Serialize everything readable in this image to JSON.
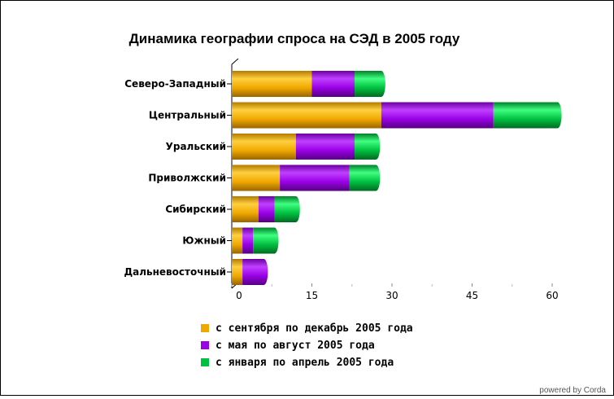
{
  "credit": "powered by Corda",
  "chart_data": {
    "type": "bar",
    "orientation": "horizontal",
    "stacked": true,
    "style": "3d-cylinder",
    "title": "Динамика географии спроса на СЭД в 2005 году",
    "categories": [
      "Северо-Западный",
      "Центральный",
      "Уральский",
      "Приволжский",
      "Сибирский",
      "Южный",
      "Дальневосточный"
    ],
    "series": [
      {
        "name": "с сентября по декабрь 2005 года",
        "color": "#f0a800",
        "values": [
          15,
          28,
          12,
          9,
          5,
          2,
          2
        ]
      },
      {
        "name": "с мая по август 2005 года",
        "color": "#9900e6",
        "values": [
          8,
          21,
          11,
          13,
          3,
          2,
          4
        ]
      },
      {
        "name": "с января по апрель 2005 года",
        "color": "#00c040",
        "values": [
          5,
          12,
          4,
          5,
          4,
          4,
          0
        ]
      }
    ],
    "xlim": [
      0,
      60
    ],
    "xticks": [
      "0",
      "15",
      "30",
      "45",
      "60"
    ],
    "grid": false,
    "legend_position": "bottom"
  }
}
